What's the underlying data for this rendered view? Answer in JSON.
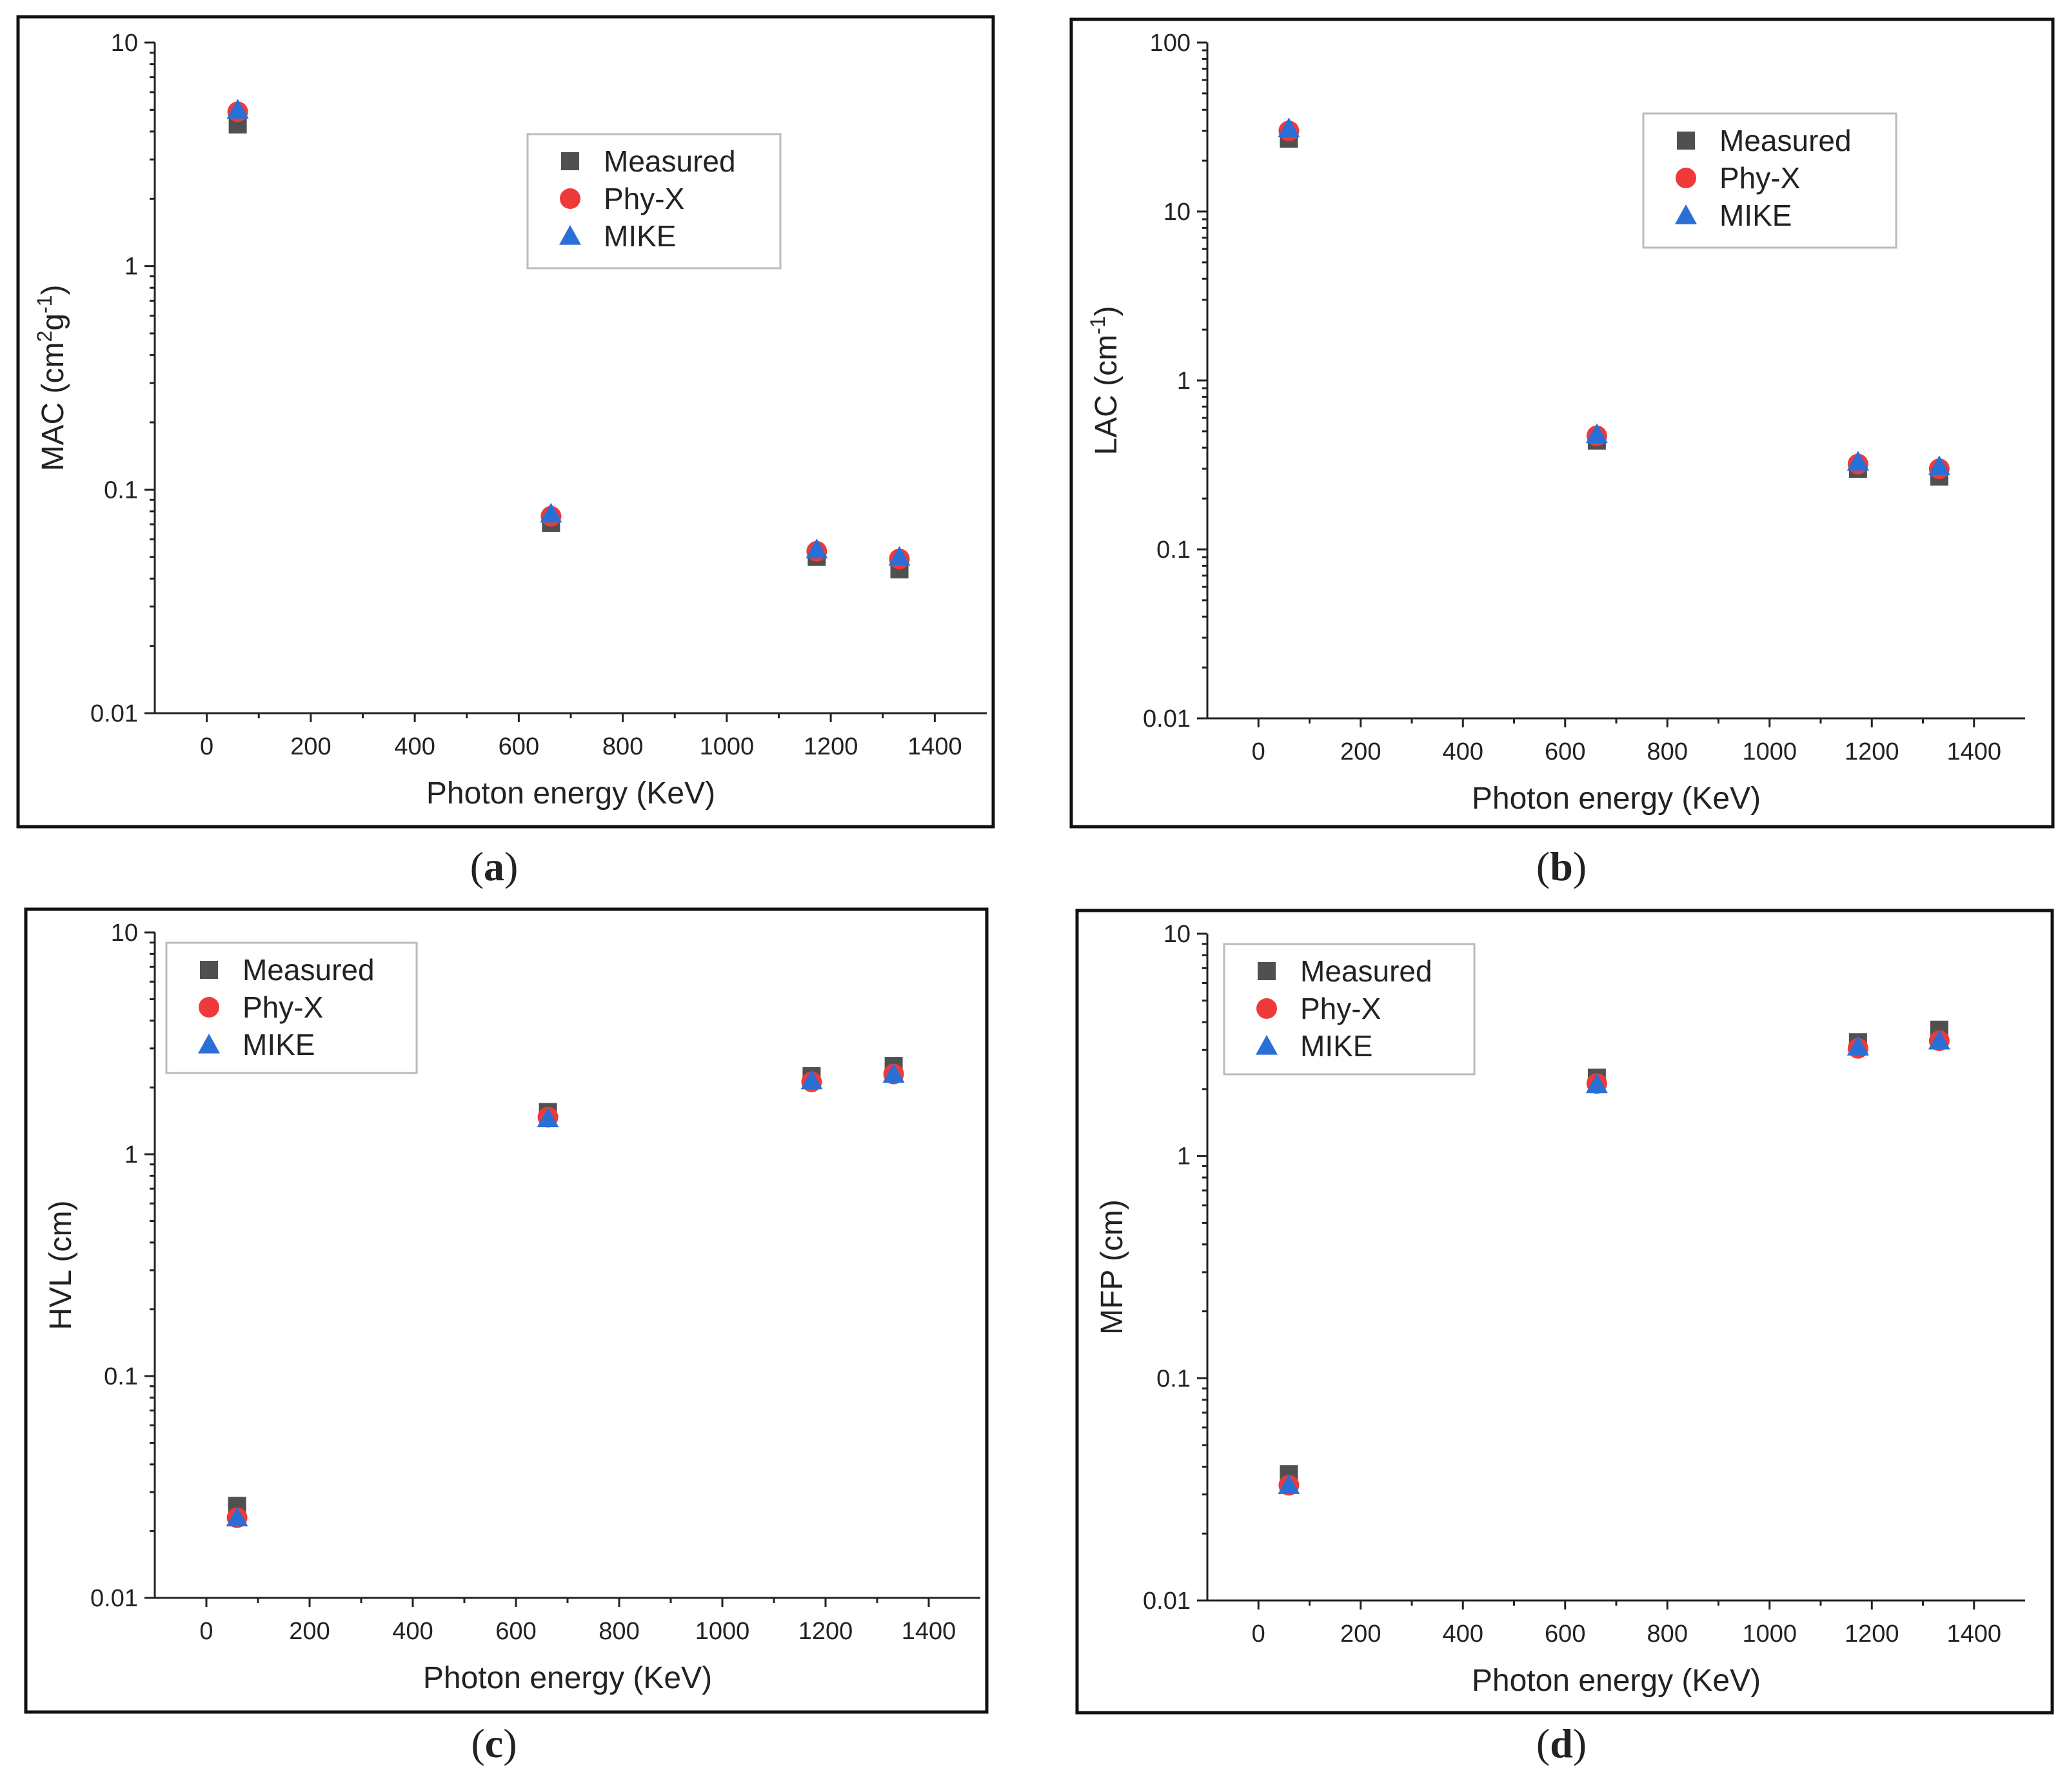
{
  "colors": {
    "measured": "#505050",
    "phyx": "#ee3a3a",
    "mike": "#2a6fd6"
  },
  "chart_data": [
    {
      "type": "scatter",
      "panel": "a",
      "caption": "(a)",
      "caption_letter": "a",
      "xlabel": "Photon energy (KeV)",
      "ylabel": "MAC (cm²g⁻¹)",
      "ylabel_base": "MAC (cm",
      "ylabel_sup1": "2",
      "ylabel_mid": "g",
      "ylabel_sup2": "-1",
      "ylabel_end": ")",
      "yscale": "log",
      "xlim": [
        -100,
        1500
      ],
      "ylim": [
        0.01,
        10
      ],
      "xticks": [
        0,
        200,
        400,
        600,
        800,
        1000,
        1200,
        1400
      ],
      "xtick_labels": [
        "0",
        "200",
        "400",
        "600",
        "800",
        "1000",
        "1200",
        "1400"
      ],
      "yticks": [
        0.01,
        0.1,
        1,
        10
      ],
      "ytick_labels": [
        "0.01",
        "0.1",
        "1",
        "10"
      ],
      "legend_position": "top-center",
      "x": [
        59.5,
        662,
        1173,
        1332
      ],
      "series": [
        {
          "name": "Measured",
          "marker": "square",
          "values": [
            4.3,
            0.071,
            0.05,
            0.044
          ]
        },
        {
          "name": "Phy-X",
          "marker": "circle",
          "values": [
            4.9,
            0.076,
            0.053,
            0.049
          ]
        },
        {
          "name": "MIKE",
          "marker": "triangle",
          "values": [
            5.0,
            0.078,
            0.054,
            0.05
          ]
        }
      ]
    },
    {
      "type": "scatter",
      "panel": "b",
      "caption": "(b)",
      "caption_letter": "b",
      "xlabel": "Photon energy (KeV)",
      "ylabel": "LAC (cm⁻¹)",
      "ylabel_base": "LAC (cm",
      "ylabel_sup1": "-1",
      "ylabel_mid": "",
      "ylabel_sup2": "",
      "ylabel_end": ")",
      "yscale": "log",
      "xlim": [
        -100,
        1500
      ],
      "ylim": [
        0.01,
        100
      ],
      "xticks": [
        0,
        200,
        400,
        600,
        800,
        1000,
        1200,
        1400
      ],
      "xtick_labels": [
        "0",
        "200",
        "400",
        "600",
        "800",
        "1000",
        "1200",
        "1400"
      ],
      "yticks": [
        0.01,
        0.1,
        1,
        10,
        100
      ],
      "ytick_labels": [
        "0.01",
        "0.1",
        "1",
        "10",
        "100"
      ],
      "legend_position": "top-right",
      "x": [
        59.5,
        662,
        1173,
        1332
      ],
      "series": [
        {
          "name": "Measured",
          "marker": "square",
          "values": [
            27,
            0.44,
            0.3,
            0.27
          ]
        },
        {
          "name": "Phy-X",
          "marker": "circle",
          "values": [
            30,
            0.47,
            0.32,
            0.3
          ]
        },
        {
          "name": "MIKE",
          "marker": "triangle",
          "values": [
            31,
            0.48,
            0.33,
            0.31
          ]
        }
      ]
    },
    {
      "type": "scatter",
      "panel": "c",
      "caption": "(c)",
      "caption_letter": "c",
      "xlabel": "Photon energy (KeV)",
      "ylabel": "HVL (cm)",
      "ylabel_base": "HVL (cm",
      "ylabel_sup1": "",
      "ylabel_mid": "",
      "ylabel_sup2": "",
      "ylabel_end": ")",
      "yscale": "log",
      "xlim": [
        -100,
        1500
      ],
      "ylim": [
        0.01,
        10
      ],
      "xticks": [
        0,
        200,
        400,
        600,
        800,
        1000,
        1200,
        1400
      ],
      "xtick_labels": [
        "0",
        "200",
        "400",
        "600",
        "800",
        "1000",
        "1200",
        "1400"
      ],
      "yticks": [
        0.01,
        0.1,
        1,
        10
      ],
      "ytick_labels": [
        "0.01",
        "0.1",
        "1",
        "10"
      ],
      "legend_position": "top-left",
      "x": [
        59.5,
        662,
        1173,
        1332
      ],
      "series": [
        {
          "name": "Measured",
          "marker": "square",
          "values": [
            0.026,
            1.55,
            2.25,
            2.5
          ]
        },
        {
          "name": "Phy-X",
          "marker": "circle",
          "values": [
            0.023,
            1.47,
            2.12,
            2.3
          ]
        },
        {
          "name": "MIKE",
          "marker": "triangle",
          "values": [
            0.023,
            1.45,
            2.15,
            2.3
          ]
        }
      ]
    },
    {
      "type": "scatter",
      "panel": "d",
      "caption": "(d)",
      "caption_letter": "d",
      "xlabel": "Photon energy (KeV)",
      "ylabel": "MFP (cm)",
      "ylabel_base": "MFP (cm",
      "ylabel_sup1": "",
      "ylabel_mid": "",
      "ylabel_sup2": "",
      "ylabel_end": ")",
      "yscale": "log",
      "xlim": [
        -100,
        1500
      ],
      "ylim": [
        0.01,
        10
      ],
      "xticks": [
        0,
        200,
        400,
        600,
        800,
        1000,
        1200,
        1400
      ],
      "xtick_labels": [
        "0",
        "200",
        "400",
        "600",
        "800",
        "1000",
        "1200",
        "1400"
      ],
      "yticks": [
        0.01,
        0.1,
        1,
        10
      ],
      "ytick_labels": [
        "0.01",
        "0.1",
        "1",
        "10"
      ],
      "legend_position": "top-left",
      "x": [
        59.5,
        662,
        1173,
        1332
      ],
      "series": [
        {
          "name": "Measured",
          "marker": "square",
          "values": [
            0.037,
            2.25,
            3.25,
            3.7
          ]
        },
        {
          "name": "Phy-X",
          "marker": "circle",
          "values": [
            0.033,
            2.12,
            3.05,
            3.3
          ]
        },
        {
          "name": "MIKE",
          "marker": "triangle",
          "values": [
            0.033,
            2.1,
            3.1,
            3.3
          ]
        }
      ]
    }
  ]
}
